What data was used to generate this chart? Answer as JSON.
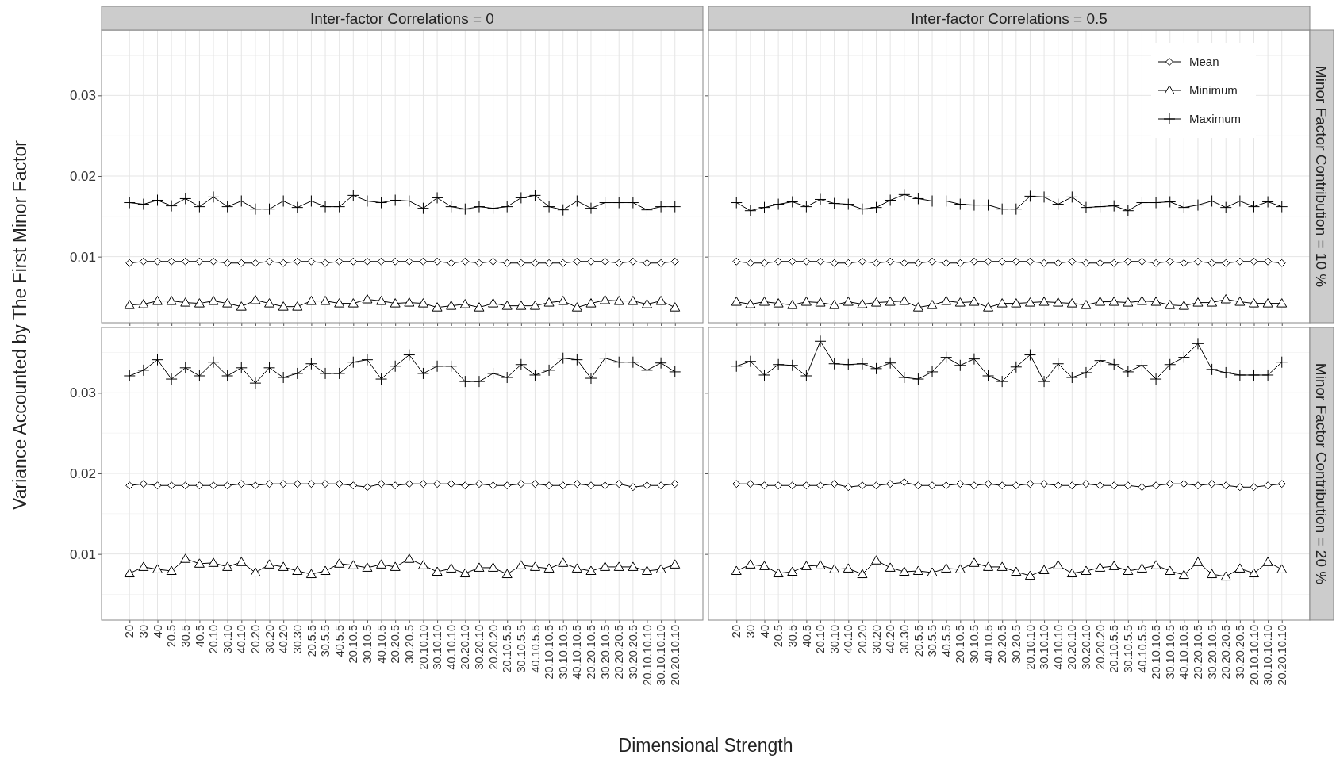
{
  "chart_data": [
    {
      "type": "line",
      "title": "Inter-factor Correlations = 0",
      "ylabel": "Variance Accounted by The First Minor Factor",
      "categories": [
        "20",
        "30",
        "40",
        "20.5",
        "30.5",
        "40.5",
        "20.10",
        "30.10",
        "40.10",
        "20.20",
        "30.20",
        "40.20",
        "30.30",
        "20.5.5",
        "30.5.5",
        "40.5.5",
        "20.10.5",
        "30.10.5",
        "40.10.5",
        "20.20.5",
        "30.20.5",
        "20.10.10",
        "30.10.10",
        "40.10.10",
        "20.20.10",
        "30.20.10",
        "20.20.20",
        "20.10.5.5",
        "30.10.5.5",
        "40.10.5.5",
        "20.10.10.5",
        "30.10.10.5",
        "40.10.10.5",
        "20.20.10.5",
        "30.20.10.5",
        "20.20.20.5",
        "30.20.20.5",
        "20.10.10.10",
        "30.10.10.10",
        "20.20.10.10"
      ],
      "ylim": [
        0.0018,
        0.0381
      ],
      "yticks": [
        0.01,
        0.02,
        0.03
      ],
      "tick_labels": "y",
      "grid": true,
      "series": [
        {
          "color": "#000000",
          "marker": "diamond",
          "values": [
            0.0092,
            0.0094,
            0.0094,
            0.0094,
            0.0094,
            0.0094,
            0.0094,
            0.0092,
            0.0092,
            0.0092,
            0.0094,
            0.0092,
            0.0094,
            0.0094,
            0.0092,
            0.0094,
            0.0094,
            0.0094,
            0.0094,
            0.0094,
            0.0094,
            0.0094,
            0.0094,
            0.0092,
            0.0094,
            0.0092,
            0.0094,
            0.0092,
            0.0092,
            0.0092,
            0.0092,
            0.0092,
            0.0094,
            0.0094,
            0.0094,
            0.0092,
            0.0094,
            0.0092,
            0.0092,
            0.0094
          ]
        },
        {
          "color": "#000000",
          "marker": "triangle",
          "values": [
            0.004,
            0.0041,
            0.0045,
            0.0045,
            0.0043,
            0.0042,
            0.0045,
            0.0042,
            0.0038,
            0.0046,
            0.0042,
            0.0038,
            0.0038,
            0.0045,
            0.0045,
            0.0042,
            0.0042,
            0.0047,
            0.0045,
            0.0042,
            0.0043,
            0.0042,
            0.0037,
            0.0039,
            0.0041,
            0.0037,
            0.0042,
            0.0039,
            0.0039,
            0.0039,
            0.0043,
            0.0045,
            0.0037,
            0.0042,
            0.0046,
            0.0045,
            0.0045,
            0.0041,
            0.0045,
            0.0037
          ]
        },
        {
          "color": "#000000",
          "marker": "cross",
          "values": [
            0.0167,
            0.0165,
            0.017,
            0.0163,
            0.0172,
            0.0162,
            0.0174,
            0.0162,
            0.0169,
            0.0159,
            0.0159,
            0.0169,
            0.0161,
            0.0169,
            0.0162,
            0.0162,
            0.0176,
            0.0169,
            0.0167,
            0.017,
            0.0169,
            0.016,
            0.0173,
            0.0162,
            0.0159,
            0.0162,
            0.016,
            0.0162,
            0.0173,
            0.0176,
            0.0162,
            0.0158,
            0.0169,
            0.016,
            0.0167,
            0.0167,
            0.0167,
            0.0158,
            0.0162,
            0.0162
          ]
        }
      ]
    },
    {
      "type": "line",
      "title": "Inter-factor Correlations = 0.5",
      "y2label": "Minor Factor Contribution = 10 %",
      "categories": [
        "20",
        "30",
        "40",
        "20.5",
        "30.5",
        "40.5",
        "20.10",
        "30.10",
        "40.10",
        "20.20",
        "30.20",
        "40.20",
        "30.30",
        "20.5.5",
        "30.5.5",
        "40.5.5",
        "20.10.5",
        "30.10.5",
        "40.10.5",
        "20.20.5",
        "30.20.5",
        "20.10.10",
        "30.10.10",
        "40.10.10",
        "20.20.10",
        "30.20.10",
        "20.20.20",
        "20.10.5.5",
        "30.10.5.5",
        "40.10.5.5",
        "20.10.10.5",
        "30.10.10.5",
        "40.10.10.5",
        "20.20.10.5",
        "30.20.10.5",
        "20.20.20.5",
        "30.20.20.5",
        "20.10.10.10",
        "30.10.10.10",
        "20.20.10.10"
      ],
      "ylim": [
        0.0018,
        0.0381
      ],
      "yticks": [
        0.01,
        0.02,
        0.03
      ],
      "tick_labels": false,
      "grid": true,
      "legend": "top right",
      "series": [
        {
          "name": "Mean",
          "color": "#000000",
          "marker": "diamond",
          "values": [
            0.0094,
            0.0092,
            0.0092,
            0.0094,
            0.0094,
            0.0094,
            0.0094,
            0.0092,
            0.0092,
            0.0094,
            0.0092,
            0.0094,
            0.0092,
            0.0092,
            0.0094,
            0.0092,
            0.0092,
            0.0094,
            0.0094,
            0.0094,
            0.0094,
            0.0094,
            0.0092,
            0.0092,
            0.0094,
            0.0092,
            0.0092,
            0.0092,
            0.0094,
            0.0094,
            0.0092,
            0.0094,
            0.0092,
            0.0094,
            0.0092,
            0.0092,
            0.0094,
            0.0094,
            0.0094,
            0.0092
          ]
        },
        {
          "name": "Minimum",
          "color": "#000000",
          "marker": "triangle",
          "values": [
            0.0044,
            0.0041,
            0.0044,
            0.0042,
            0.004,
            0.0044,
            0.0043,
            0.004,
            0.0044,
            0.0041,
            0.0043,
            0.0044,
            0.0045,
            0.0037,
            0.004,
            0.0045,
            0.0043,
            0.0044,
            0.0037,
            0.0042,
            0.0042,
            0.0043,
            0.0044,
            0.0043,
            0.0042,
            0.004,
            0.0044,
            0.0044,
            0.0043,
            0.0045,
            0.0044,
            0.004,
            0.0039,
            0.0043,
            0.0043,
            0.0047,
            0.0044,
            0.0042,
            0.0042,
            0.0042
          ]
        },
        {
          "name": "Maximum",
          "color": "#000000",
          "marker": "cross",
          "values": [
            0.0167,
            0.0157,
            0.0161,
            0.0165,
            0.0168,
            0.0162,
            0.0171,
            0.0166,
            0.0165,
            0.0159,
            0.0161,
            0.017,
            0.0177,
            0.0172,
            0.0169,
            0.0169,
            0.0165,
            0.0164,
            0.0164,
            0.0159,
            0.0159,
            0.0175,
            0.0174,
            0.0165,
            0.0174,
            0.0161,
            0.0162,
            0.0163,
            0.0157,
            0.0167,
            0.0167,
            0.0168,
            0.0161,
            0.0164,
            0.0169,
            0.0161,
            0.0169,
            0.0162,
            0.0168,
            0.0162
          ]
        }
      ]
    },
    {
      "type": "line",
      "xlabel": "Dimensional Strength",
      "categories": [
        "20",
        "30",
        "40",
        "20.5",
        "30.5",
        "40.5",
        "20.10",
        "30.10",
        "40.10",
        "20.20",
        "30.20",
        "40.20",
        "30.30",
        "20.5.5",
        "30.5.5",
        "40.5.5",
        "20.10.5",
        "30.10.5",
        "40.10.5",
        "20.20.5",
        "30.20.5",
        "20.10.10",
        "30.10.10",
        "40.10.10",
        "20.20.10",
        "30.20.10",
        "20.20.20",
        "20.10.5.5",
        "30.10.5.5",
        "40.10.5.5",
        "20.10.10.5",
        "30.10.10.5",
        "40.10.10.5",
        "20.20.10.5",
        "30.20.10.5",
        "20.20.20.5",
        "30.20.20.5",
        "20.10.10.10",
        "30.10.10.10",
        "20.20.10.10"
      ],
      "ylim": [
        0.0018,
        0.0381
      ],
      "yticks": [
        0.01,
        0.02,
        0.03
      ],
      "grid": true,
      "series": [
        {
          "color": "#000000",
          "marker": "diamond",
          "values": [
            0.0185,
            0.0187,
            0.0185,
            0.0185,
            0.0185,
            0.0185,
            0.0185,
            0.0185,
            0.0187,
            0.0185,
            0.0187,
            0.0187,
            0.0187,
            0.0187,
            0.0187,
            0.0187,
            0.0185,
            0.0183,
            0.0187,
            0.0185,
            0.0187,
            0.0187,
            0.0187,
            0.0187,
            0.0185,
            0.0187,
            0.0185,
            0.0185,
            0.0187,
            0.0187,
            0.0185,
            0.0185,
            0.0187,
            0.0185,
            0.0185,
            0.0187,
            0.0183,
            0.0185,
            0.0185,
            0.0187
          ]
        },
        {
          "color": "#000000",
          "marker": "triangle",
          "values": [
            0.0076,
            0.0084,
            0.0081,
            0.0079,
            0.0094,
            0.0088,
            0.0089,
            0.0084,
            0.009,
            0.0077,
            0.0087,
            0.0084,
            0.0079,
            0.0075,
            0.0079,
            0.0088,
            0.0086,
            0.0083,
            0.0087,
            0.0084,
            0.0094,
            0.0086,
            0.0078,
            0.0082,
            0.0076,
            0.0083,
            0.0083,
            0.0075,
            0.0086,
            0.0084,
            0.0082,
            0.0089,
            0.0082,
            0.0079,
            0.0084,
            0.0084,
            0.0084,
            0.0079,
            0.0081,
            0.0087
          ]
        },
        {
          "color": "#000000",
          "marker": "cross",
          "values": [
            0.0321,
            0.0328,
            0.0341,
            0.0317,
            0.0331,
            0.0321,
            0.0338,
            0.0321,
            0.0331,
            0.0312,
            0.0331,
            0.0319,
            0.0324,
            0.0336,
            0.0324,
            0.0324,
            0.0338,
            0.0341,
            0.0317,
            0.0333,
            0.0347,
            0.0324,
            0.0333,
            0.0333,
            0.0314,
            0.0314,
            0.0324,
            0.0319,
            0.0335,
            0.0322,
            0.0328,
            0.0343,
            0.0341,
            0.0318,
            0.0343,
            0.0338,
            0.0338,
            0.0328,
            0.0337,
            0.0326
          ]
        }
      ]
    },
    {
      "type": "line",
      "y2label": "Minor Factor Contribution = 20 %",
      "categories": [
        "20",
        "30",
        "40",
        "20.5",
        "30.5",
        "40.5",
        "20.10",
        "30.10",
        "40.10",
        "20.20",
        "30.20",
        "40.20",
        "30.30",
        "20.5.5",
        "30.5.5",
        "40.5.5",
        "20.10.5",
        "30.10.5",
        "40.10.5",
        "20.20.5",
        "30.20.5",
        "20.10.10",
        "30.10.10",
        "40.10.10",
        "20.20.10",
        "30.20.10",
        "20.20.20",
        "20.10.5.5",
        "30.10.5.5",
        "40.10.5.5",
        "20.10.10.5",
        "30.10.10.5",
        "40.10.10.5",
        "20.20.10.5",
        "30.20.10.5",
        "20.20.20.5",
        "30.20.20.5",
        "20.10.10.10",
        "30.10.10.10",
        "20.20.10.10"
      ],
      "ylim": [
        0.0018,
        0.0381
      ],
      "yticks": [
        0.01,
        0.02,
        0.03
      ],
      "tick_labels": "x",
      "grid": true,
      "series": [
        {
          "color": "#000000",
          "marker": "diamond",
          "values": [
            0.0187,
            0.0187,
            0.0185,
            0.0185,
            0.0185,
            0.0185,
            0.0185,
            0.0187,
            0.0183,
            0.0185,
            0.0185,
            0.0187,
            0.0189,
            0.0185,
            0.0185,
            0.0185,
            0.0187,
            0.0185,
            0.0187,
            0.0185,
            0.0185,
            0.0187,
            0.0187,
            0.0185,
            0.0185,
            0.0187,
            0.0185,
            0.0185,
            0.0185,
            0.0183,
            0.0185,
            0.0187,
            0.0187,
            0.0185,
            0.0187,
            0.0185,
            0.0183,
            0.0183,
            0.0185,
            0.0187
          ]
        },
        {
          "color": "#000000",
          "marker": "triangle",
          "values": [
            0.0079,
            0.0087,
            0.0085,
            0.0076,
            0.0078,
            0.0085,
            0.0086,
            0.0081,
            0.0082,
            0.0075,
            0.0092,
            0.0083,
            0.0078,
            0.0079,
            0.0077,
            0.0082,
            0.0081,
            0.0089,
            0.0084,
            0.0084,
            0.0078,
            0.0073,
            0.008,
            0.0086,
            0.0076,
            0.0079,
            0.0083,
            0.0085,
            0.0079,
            0.0082,
            0.0086,
            0.0079,
            0.0074,
            0.009,
            0.0075,
            0.0072,
            0.0082,
            0.0076,
            0.009,
            0.0081
          ]
        },
        {
          "color": "#000000",
          "marker": "cross",
          "values": [
            0.0333,
            0.0339,
            0.0322,
            0.0335,
            0.0334,
            0.0321,
            0.0364,
            0.0336,
            0.0335,
            0.0336,
            0.033,
            0.0337,
            0.0319,
            0.0317,
            0.0326,
            0.0344,
            0.0334,
            0.0342,
            0.0321,
            0.0314,
            0.0332,
            0.0347,
            0.0314,
            0.0336,
            0.0319,
            0.0325,
            0.034,
            0.0335,
            0.0326,
            0.0334,
            0.0317,
            0.0335,
            0.0344,
            0.0361,
            0.0329,
            0.0325,
            0.0322,
            0.0322,
            0.0322,
            0.0338
          ]
        }
      ]
    }
  ]
}
